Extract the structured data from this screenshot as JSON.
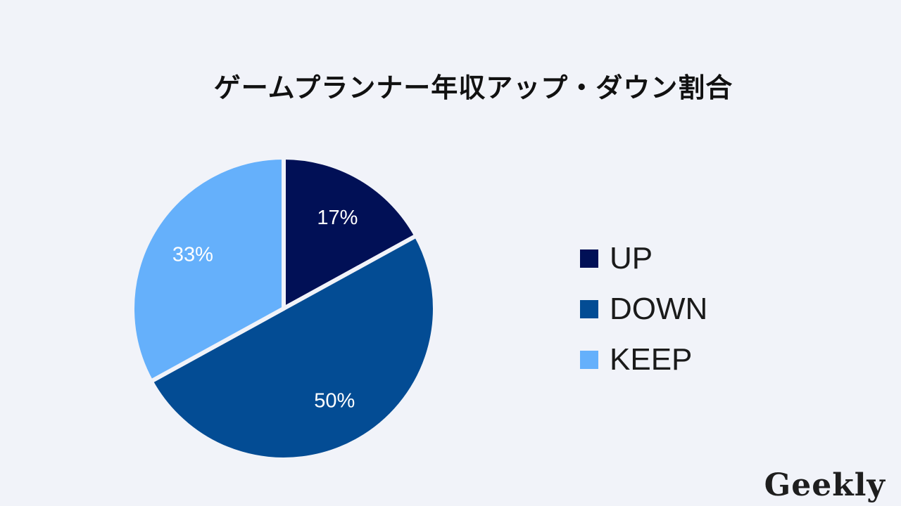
{
  "chart_data": {
    "type": "pie",
    "title": "ゲームプランナー年収アップ・ダウン割合",
    "categories": [
      "UP",
      "DOWN",
      "KEEP"
    ],
    "values": [
      17,
      50,
      33
    ],
    "value_labels": [
      "17%",
      "50%",
      "33%"
    ],
    "colors": [
      "#011056",
      "#034c94",
      "#65b0fb"
    ],
    "legend_position": "right",
    "start_angle": "12 o'clock, clockwise"
  },
  "brand": {
    "logo_text": "Geekly"
  }
}
